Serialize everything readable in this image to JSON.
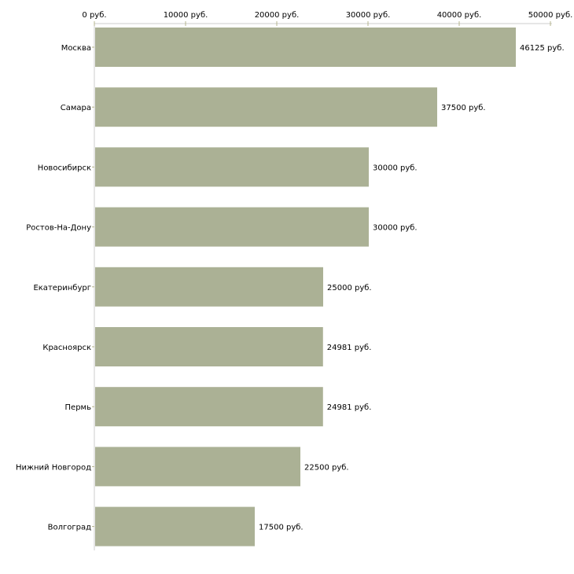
{
  "chart_data": {
    "type": "bar",
    "orientation": "horizontal",
    "title": "",
    "xlabel": "",
    "ylabel": "",
    "unit": "руб.",
    "categories": [
      "Москва",
      "Самара",
      "Новосибирск",
      "Ростов-На-Дону",
      "Екатеринбург",
      "Красноярск",
      "Пермь",
      "Нижний Новгород",
      "Волгоград"
    ],
    "values": [
      46125,
      37500,
      30000,
      30000,
      25000,
      24981,
      24981,
      22500,
      17500
    ],
    "data_labels": [
      "46125 руб.",
      "37500 руб.",
      "30000 руб.",
      "30000 руб.",
      "25000 руб.",
      "24981 руб.",
      "24981 руб.",
      "22500 руб.",
      "17500 руб."
    ],
    "xlim": [
      0,
      50000
    ],
    "ticks": [
      0,
      10000,
      20000,
      30000,
      40000,
      50000
    ],
    "tick_labels": [
      "0 руб.",
      "10000 руб.",
      "20000 руб.",
      "30000 руб.",
      "40000 руб.",
      "50000 руб."
    ],
    "axis_position": "top",
    "grid": false,
    "colors": {
      "bar": "#abb195",
      "axis": "#cccccc",
      "tick": "#b5b48c"
    }
  }
}
